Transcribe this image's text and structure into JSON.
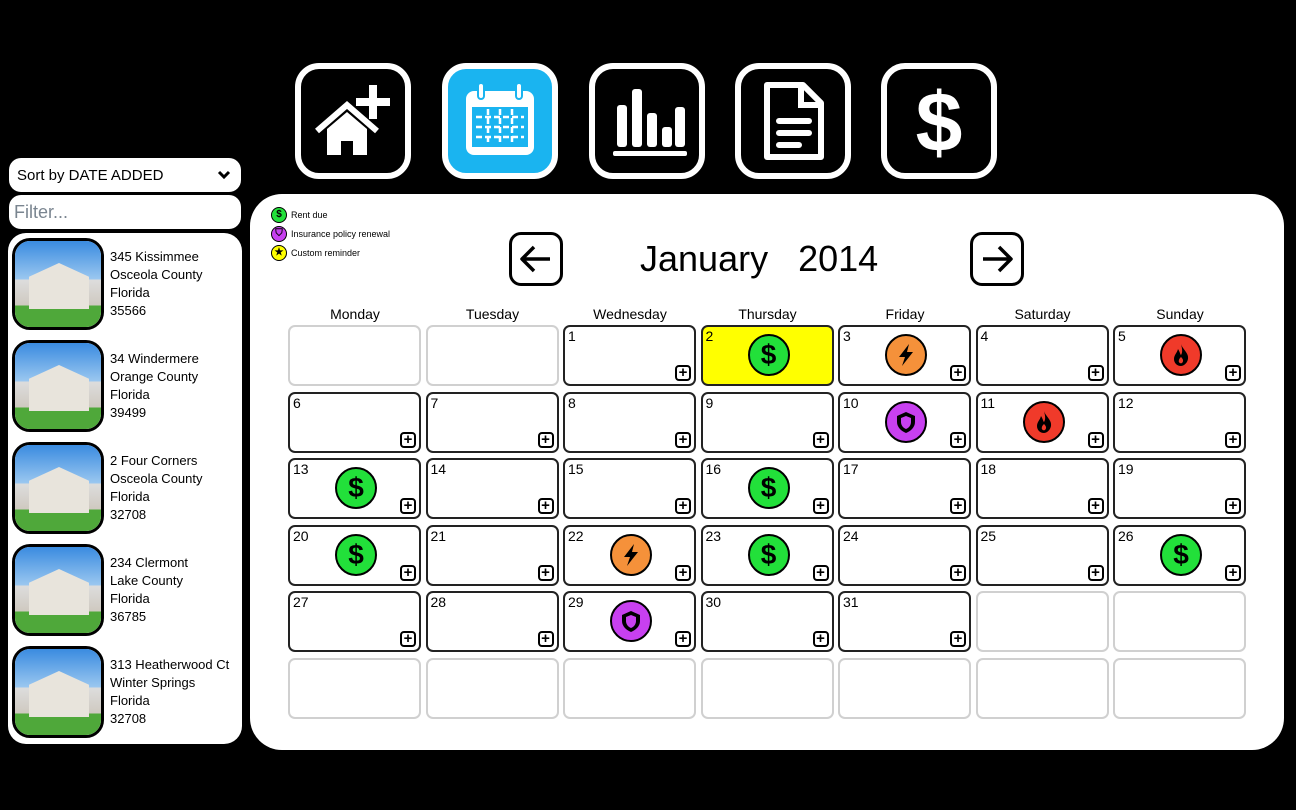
{
  "toolbar": {
    "items": [
      {
        "name": "add-property",
        "icon": "house-plus-icon",
        "active": false
      },
      {
        "name": "calendar",
        "icon": "calendar-icon",
        "active": true
      },
      {
        "name": "reports",
        "icon": "bar-chart-icon",
        "active": false
      },
      {
        "name": "documents",
        "icon": "document-icon",
        "active": false
      },
      {
        "name": "finance",
        "icon": "dollar-icon",
        "active": false
      }
    ],
    "active_color": "#1ab4f0"
  },
  "sidebar": {
    "sort_label": "Sort by DATE ADDED",
    "filter_placeholder": "Filter...",
    "properties": [
      {
        "address": "345 Kissimmee",
        "county": "Osceola County",
        "state": "Florida",
        "zip": "35566"
      },
      {
        "address": "34 Windermere",
        "county": "Orange County",
        "state": "Florida",
        "zip": "39499"
      },
      {
        "address": "2 Four Corners",
        "county": "Osceola County",
        "state": "Florida",
        "zip": "32708"
      },
      {
        "address": "234 Clermont",
        "county": "Lake County",
        "state": "Florida",
        "zip": "36785"
      },
      {
        "address": "313 Heatherwood Ct",
        "county": "Winter Springs",
        "state": "Florida",
        "zip": "32708"
      }
    ]
  },
  "legend": [
    {
      "label": "Rent due",
      "color": "#22e03a",
      "icon": "dollar-icon"
    },
    {
      "label": "Insurance policy renewal",
      "color": "#c840f0",
      "icon": "shield-icon"
    },
    {
      "label": "Custom reminder",
      "color": "#ffff00",
      "icon": "star-icon"
    }
  ],
  "calendar": {
    "month": "January",
    "year": "2014",
    "weekdays": [
      "Monday",
      "Tuesday",
      "Wednesday",
      "Thursday",
      "Friday",
      "Saturday",
      "Sunday"
    ],
    "weeks": [
      [
        null,
        null,
        1,
        2,
        3,
        4,
        5
      ],
      [
        6,
        7,
        8,
        9,
        10,
        11,
        12
      ],
      [
        13,
        14,
        15,
        16,
        17,
        18,
        19
      ],
      [
        20,
        21,
        22,
        23,
        24,
        25,
        26
      ],
      [
        27,
        28,
        29,
        30,
        31,
        null,
        null
      ],
      [
        null,
        null,
        null,
        null,
        null,
        null,
        null
      ]
    ],
    "today": 2,
    "events": {
      "2": "rent",
      "3": "electric",
      "5": "fire",
      "10": "insurance",
      "11": "fire",
      "13": "rent",
      "16": "rent",
      "20": "rent",
      "22": "electric",
      "23": "rent",
      "26": "rent",
      "29": "insurance"
    },
    "event_types": {
      "rent": {
        "color": "#22e03a",
        "icon": "dollar-icon"
      },
      "electric": {
        "color": "#f5913a",
        "icon": "lightning-icon"
      },
      "fire": {
        "color": "#f03a2a",
        "icon": "fire-icon"
      },
      "insurance": {
        "color": "#c840f0",
        "icon": "shield-icon"
      }
    }
  }
}
